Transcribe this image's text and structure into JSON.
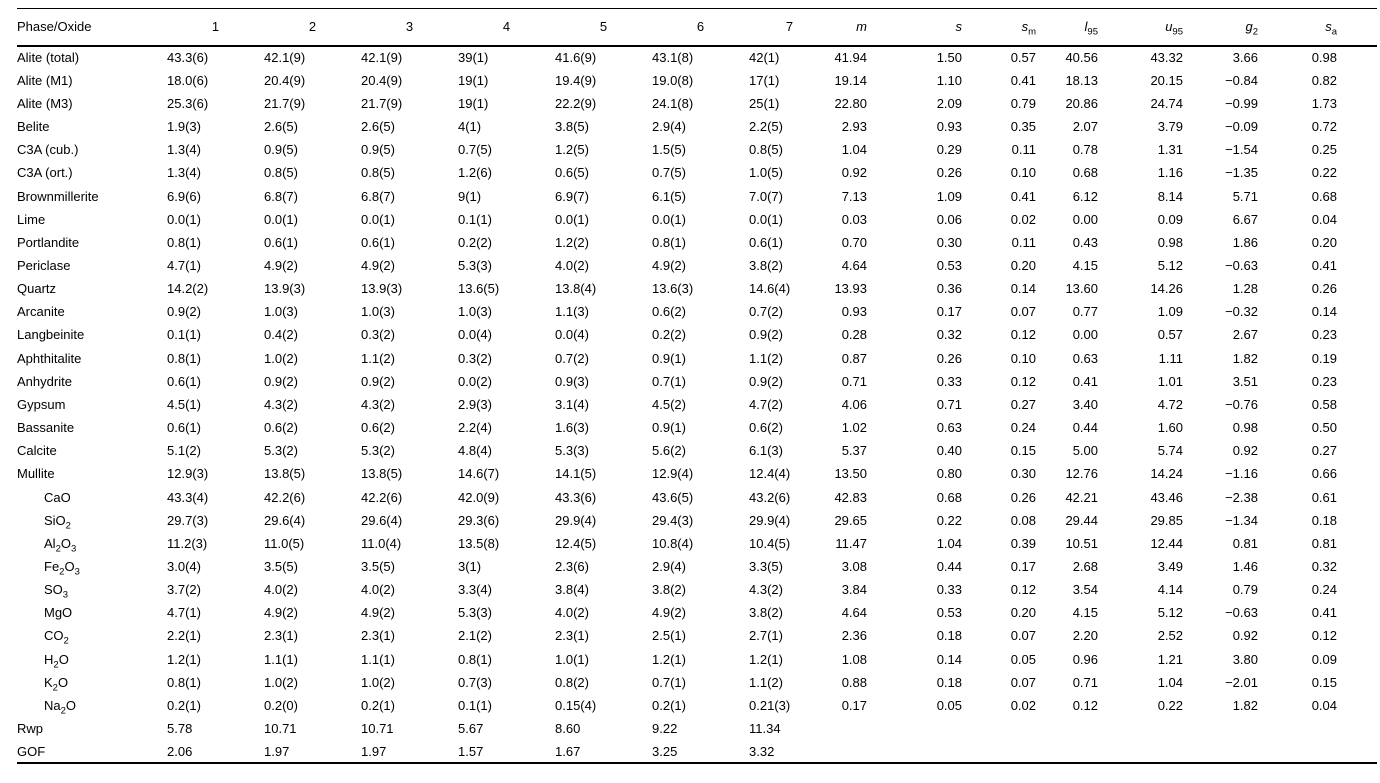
{
  "table": {
    "header": {
      "phase_label": "Phase/Oxide",
      "columns": [
        "1",
        "2",
        "3",
        "4",
        "5",
        "6",
        "7"
      ],
      "stats": [
        "m",
        "s",
        "s_{m}",
        "l_{95}",
        "u_{95}",
        "g_{2}",
        "s_{a}"
      ]
    },
    "rows": [
      {
        "label": "Alite (total)",
        "indent": false,
        "values": [
          "43.3(6)",
          "42.1(9)",
          "42.1(9)",
          "39(1)",
          "41.6(9)",
          "43.1(8)",
          "42(1)",
          "41.94",
          "1.50",
          "0.57",
          "40.56",
          "43.32",
          "3.66",
          "0.98"
        ]
      },
      {
        "label": "Alite (M1)",
        "indent": false,
        "values": [
          "18.0(6)",
          "20.4(9)",
          "20.4(9)",
          "19(1)",
          "19.4(9)",
          "19.0(8)",
          "17(1)",
          "19.14",
          "1.10",
          "0.41",
          "18.13",
          "20.15",
          "−0.84",
          "0.82"
        ]
      },
      {
        "label": "Alite (M3)",
        "indent": false,
        "values": [
          "25.3(6)",
          "21.7(9)",
          "21.7(9)",
          "19(1)",
          "22.2(9)",
          "24.1(8)",
          "25(1)",
          "22.80",
          "2.09",
          "0.79",
          "20.86",
          "24.74",
          "−0.99",
          "1.73"
        ]
      },
      {
        "label": "Belite",
        "indent": false,
        "values": [
          "1.9(3)",
          "2.6(5)",
          "2.6(5)",
          "4(1)",
          "3.8(5)",
          "2.9(4)",
          "2.2(5)",
          "2.93",
          "0.93",
          "0.35",
          "2.07",
          "3.79",
          "−0.09",
          "0.72"
        ]
      },
      {
        "label": "C3A (cub.)",
        "indent": false,
        "values": [
          "1.3(4)",
          "0.9(5)",
          "0.9(5)",
          "0.7(5)",
          "1.2(5)",
          "1.5(5)",
          "0.8(5)",
          "1.04",
          "0.29",
          "0.11",
          "0.78",
          "1.31",
          "−1.54",
          "0.25"
        ]
      },
      {
        "label": "C3A (ort.)",
        "indent": false,
        "values": [
          "1.3(4)",
          "0.8(5)",
          "0.8(5)",
          "1.2(6)",
          "0.6(5)",
          "0.7(5)",
          "1.0(5)",
          "0.92",
          "0.26",
          "0.10",
          "0.68",
          "1.16",
          "−1.35",
          "0.22"
        ]
      },
      {
        "label": "Brownmillerite",
        "indent": false,
        "values": [
          "6.9(6)",
          "6.8(7)",
          "6.8(7)",
          "9(1)",
          "6.9(7)",
          "6.1(5)",
          "7.0(7)",
          "7.13",
          "1.09",
          "0.41",
          "6.12",
          "8.14",
          "5.71",
          "0.68"
        ]
      },
      {
        "label": "Lime",
        "indent": false,
        "values": [
          "0.0(1)",
          "0.0(1)",
          "0.0(1)",
          "0.1(1)",
          "0.0(1)",
          "0.0(1)",
          "0.0(1)",
          "0.03",
          "0.06",
          "0.02",
          "0.00",
          "0.09",
          "6.67",
          "0.04"
        ]
      },
      {
        "label": "Portlandite",
        "indent": false,
        "values": [
          "0.8(1)",
          "0.6(1)",
          "0.6(1)",
          "0.2(2)",
          "1.2(2)",
          "0.8(1)",
          "0.6(1)",
          "0.70",
          "0.30",
          "0.11",
          "0.43",
          "0.98",
          "1.86",
          "0.20"
        ]
      },
      {
        "label": "Periclase",
        "indent": false,
        "values": [
          "4.7(1)",
          "4.9(2)",
          "4.9(2)",
          "5.3(3)",
          "4.0(2)",
          "4.9(2)",
          "3.8(2)",
          "4.64",
          "0.53",
          "0.20",
          "4.15",
          "5.12",
          "−0.63",
          "0.41"
        ]
      },
      {
        "label": "Quartz",
        "indent": false,
        "values": [
          "14.2(2)",
          "13.9(3)",
          "13.9(3)",
          "13.6(5)",
          "13.8(4)",
          "13.6(3)",
          "14.6(4)",
          "13.93",
          "0.36",
          "0.14",
          "13.60",
          "14.26",
          "1.28",
          "0.26"
        ]
      },
      {
        "label": "Arcanite",
        "indent": false,
        "values": [
          "0.9(2)",
          "1.0(3)",
          "1.0(3)",
          "1.0(3)",
          "1.1(3)",
          "0.6(2)",
          "0.7(2)",
          "0.93",
          "0.17",
          "0.07",
          "0.77",
          "1.09",
          "−0.32",
          "0.14"
        ]
      },
      {
        "label": "Langbeinite",
        "indent": false,
        "values": [
          "0.1(1)",
          "0.4(2)",
          "0.3(2)",
          "0.0(4)",
          "0.0(4)",
          "0.2(2)",
          "0.9(2)",
          "0.28",
          "0.32",
          "0.12",
          "0.00",
          "0.57",
          "2.67",
          "0.23"
        ]
      },
      {
        "label": "Aphthitalite",
        "indent": false,
        "values": [
          "0.8(1)",
          "1.0(2)",
          "1.1(2)",
          "0.3(2)",
          "0.7(2)",
          "0.9(1)",
          "1.1(2)",
          "0.87",
          "0.26",
          "0.10",
          "0.63",
          "1.11",
          "1.82",
          "0.19"
        ]
      },
      {
        "label": "Anhydrite",
        "indent": false,
        "values": [
          "0.6(1)",
          "0.9(2)",
          "0.9(2)",
          "0.0(2)",
          "0.9(3)",
          "0.7(1)",
          "0.9(2)",
          "0.71",
          "0.33",
          "0.12",
          "0.41",
          "1.01",
          "3.51",
          "0.23"
        ]
      },
      {
        "label": "Gypsum",
        "indent": false,
        "values": [
          "4.5(1)",
          "4.3(2)",
          "4.3(2)",
          "2.9(3)",
          "3.1(4)",
          "4.5(2)",
          "4.7(2)",
          "4.06",
          "0.71",
          "0.27",
          "3.40",
          "4.72",
          "−0.76",
          "0.58"
        ]
      },
      {
        "label": "Bassanite",
        "indent": false,
        "values": [
          "0.6(1)",
          "0.6(2)",
          "0.6(2)",
          "2.2(4)",
          "1.6(3)",
          "0.9(1)",
          "0.6(2)",
          "1.02",
          "0.63",
          "0.24",
          "0.44",
          "1.60",
          "0.98",
          "0.50"
        ]
      },
      {
        "label": "Calcite",
        "indent": false,
        "values": [
          "5.1(2)",
          "5.3(2)",
          "5.3(2)",
          "4.8(4)",
          "5.3(3)",
          "5.6(2)",
          "6.1(3)",
          "5.37",
          "0.40",
          "0.15",
          "5.00",
          "5.74",
          "0.92",
          "0.27"
        ]
      },
      {
        "label": "Mullite",
        "indent": false,
        "values": [
          "12.9(3)",
          "13.8(5)",
          "13.8(5)",
          "14.6(7)",
          "14.1(5)",
          "12.9(4)",
          "12.4(4)",
          "13.50",
          "0.80",
          "0.30",
          "12.76",
          "14.24",
          "−1.16",
          "0.66"
        ]
      },
      {
        "label": "CaO",
        "indent": true,
        "values": [
          "43.3(4)",
          "42.2(6)",
          "42.2(6)",
          "42.0(9)",
          "43.3(6)",
          "43.6(5)",
          "43.2(6)",
          "42.83",
          "0.68",
          "0.26",
          "42.21",
          "43.46",
          "−2.38",
          "0.61"
        ]
      },
      {
        "label": "SiO_{2}",
        "indent": true,
        "values": [
          "29.7(3)",
          "29.6(4)",
          "29.6(4)",
          "29.3(6)",
          "29.9(4)",
          "29.4(3)",
          "29.9(4)",
          "29.65",
          "0.22",
          "0.08",
          "29.44",
          "29.85",
          "−1.34",
          "0.18"
        ]
      },
      {
        "label": "Al_{2}O_{3}",
        "indent": true,
        "values": [
          "11.2(3)",
          "11.0(5)",
          "11.0(4)",
          "13.5(8)",
          "12.4(5)",
          "10.8(4)",
          "10.4(5)",
          "11.47",
          "1.04",
          "0.39",
          "10.51",
          "12.44",
          "0.81",
          "0.81"
        ]
      },
      {
        "label": "Fe_{2}O_{3}",
        "indent": true,
        "values": [
          "3.0(4)",
          "3.5(5)",
          "3.5(5)",
          "3(1)",
          "2.3(6)",
          "2.9(4)",
          "3.3(5)",
          "3.08",
          "0.44",
          "0.17",
          "2.68",
          "3.49",
          "1.46",
          "0.32"
        ]
      },
      {
        "label": "SO_{3}",
        "indent": true,
        "values": [
          "3.7(2)",
          "4.0(2)",
          "4.0(2)",
          "3.3(4)",
          "3.8(4)",
          "3.8(2)",
          "4.3(2)",
          "3.84",
          "0.33",
          "0.12",
          "3.54",
          "4.14",
          "0.79",
          "0.24"
        ]
      },
      {
        "label": "MgO",
        "indent": true,
        "values": [
          "4.7(1)",
          "4.9(2)",
          "4.9(2)",
          "5.3(3)",
          "4.0(2)",
          "4.9(2)",
          "3.8(2)",
          "4.64",
          "0.53",
          "0.20",
          "4.15",
          "5.12",
          "−0.63",
          "0.41"
        ]
      },
      {
        "label": "CO_{2}",
        "indent": true,
        "values": [
          "2.2(1)",
          "2.3(1)",
          "2.3(1)",
          "2.1(2)",
          "2.3(1)",
          "2.5(1)",
          "2.7(1)",
          "2.36",
          "0.18",
          "0.07",
          "2.20",
          "2.52",
          "0.92",
          "0.12"
        ]
      },
      {
        "label": "H_{2}O",
        "indent": true,
        "values": [
          "1.2(1)",
          "1.1(1)",
          "1.1(1)",
          "0.8(1)",
          "1.0(1)",
          "1.2(1)",
          "1.2(1)",
          "1.08",
          "0.14",
          "0.05",
          "0.96",
          "1.21",
          "3.80",
          "0.09"
        ]
      },
      {
        "label": "K_{2}O",
        "indent": true,
        "values": [
          "0.8(1)",
          "1.0(2)",
          "1.0(2)",
          "0.7(3)",
          "0.8(2)",
          "0.7(1)",
          "1.1(2)",
          "0.88",
          "0.18",
          "0.07",
          "0.71",
          "1.04",
          "−2.01",
          "0.15"
        ]
      },
      {
        "label": "Na_{2}O",
        "indent": true,
        "values": [
          "0.2(1)",
          "0.2(0)",
          "0.2(1)",
          "0.1(1)",
          "0.15(4)",
          "0.2(1)",
          "0.21(3)",
          "0.17",
          "0.05",
          "0.02",
          "0.12",
          "0.22",
          "1.82",
          "0.04"
        ]
      },
      {
        "label": "Rwp",
        "indent": false,
        "values": [
          "5.78",
          "10.71",
          "10.71",
          "5.67",
          "8.60",
          "9.22",
          "11.34",
          "",
          "",
          "",
          "",
          "",
          "",
          ""
        ]
      },
      {
        "label": "GOF",
        "indent": false,
        "values": [
          "2.06",
          "1.97",
          "1.97",
          "1.57",
          "1.67",
          "3.25",
          "3.32",
          "",
          "",
          "",
          "",
          "",
          "",
          ""
        ]
      }
    ]
  }
}
